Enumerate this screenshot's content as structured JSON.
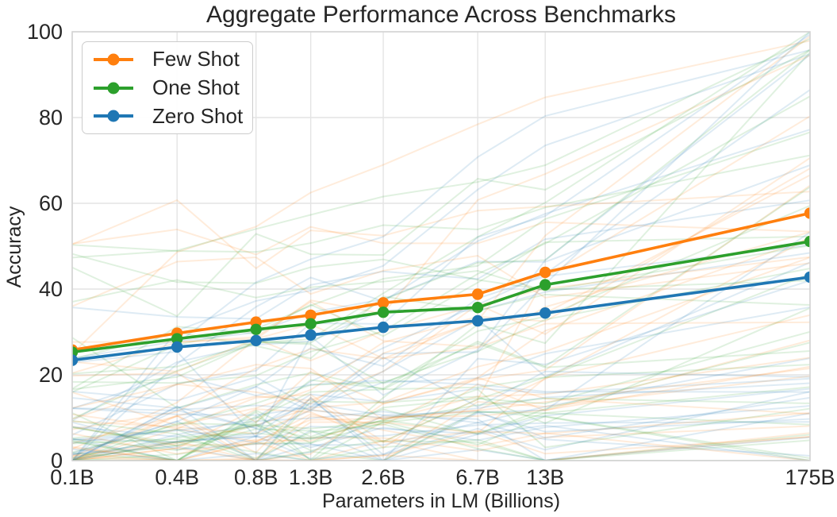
{
  "title": "Aggregate Performance Across Benchmarks",
  "axes": {
    "x_label": "Parameters in LM (Billions)",
    "y_label": "Accuracy"
  },
  "legend": {
    "position": "upper left",
    "items": [
      {
        "label": "Few Shot",
        "color": "#ff7f0e"
      },
      {
        "label": "One Shot",
        "color": "#2ca02c"
      },
      {
        "label": "Zero Shot",
        "color": "#1f77b4"
      }
    ]
  },
  "chart_data": {
    "type": "line",
    "title": "Aggregate Performance Across Benchmarks",
    "xlabel": "Parameters in LM (Billions)",
    "ylabel": "Accuracy",
    "x_scale": "log",
    "x_tick_labels": [
      "0.1B",
      "0.4B",
      "0.8B",
      "1.3B",
      "2.6B",
      "6.7B",
      "13B",
      "175B"
    ],
    "x_values_billions": [
      0.125,
      0.35,
      0.76,
      1.3,
      2.65,
      6.7,
      13,
      175
    ],
    "y_ticks": [
      0,
      20,
      40,
      60,
      80,
      100
    ],
    "ylim": [
      0,
      100
    ],
    "grid": true,
    "legend_position": "upper left",
    "series": [
      {
        "name": "Few Shot",
        "color": "#ff7f0e",
        "values": [
          25.8,
          29.7,
          32.3,
          33.9,
          36.8,
          38.8,
          43.9,
          57.7
        ]
      },
      {
        "name": "One Shot",
        "color": "#2ca02c",
        "values": [
          25.3,
          28.4,
          30.6,
          31.9,
          34.6,
          35.7,
          41.0,
          51.1
        ]
      },
      {
        "name": "Zero Shot",
        "color": "#1f77b4",
        "values": [
          23.4,
          26.5,
          28.0,
          29.3,
          31.1,
          32.6,
          34.4,
          42.8
        ]
      }
    ],
    "background_series": {
      "description": "faint individual benchmark curves (one per benchmark per shot setting), unreadable exact values; rendered procedurally",
      "per_class": 30,
      "opacity": 0.15,
      "stroke_width": 2,
      "seed": 20,
      "colors": [
        "#ff7f0e",
        "#2ca02c",
        "#1f77b4"
      ]
    }
  },
  "colors": {
    "few_shot": "#ff7f0e",
    "one_shot": "#2ca02c",
    "zero_shot": "#1f77b4",
    "grid": "#e4e4e4",
    "axis_border": "#d4d4d4",
    "text": "#262626",
    "background": "#ffffff"
  }
}
